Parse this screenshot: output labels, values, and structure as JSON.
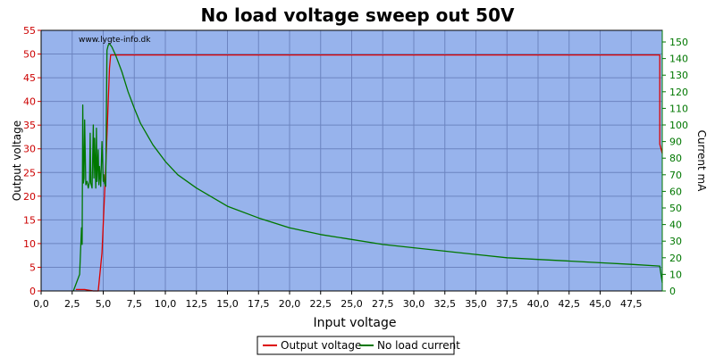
{
  "chart_data": {
    "type": "line",
    "title": "No load voltage sweep out 50V",
    "watermark": "www.lygte-info.dk",
    "xlabel": "Input voltage",
    "ylabel_left": "Output voltage",
    "ylabel_right": "Current mA",
    "xlim": [
      0,
      50
    ],
    "ylim_left": [
      0,
      55
    ],
    "ylim_right": [
      0,
      157
    ],
    "x_ticks": [
      "0,0",
      "2,5",
      "5,0",
      "7,5",
      "10,0",
      "12,5",
      "15,0",
      "17,5",
      "20,0",
      "22,5",
      "25,0",
      "27,5",
      "30,0",
      "32,5",
      "35,0",
      "37,5",
      "40,0",
      "42,5",
      "45,0",
      "47,5"
    ],
    "y_left_ticks": [
      "0",
      "5",
      "10",
      "15",
      "20",
      "25",
      "30",
      "35",
      "40",
      "45",
      "50",
      "55"
    ],
    "y_right_ticks": [
      "0",
      "10",
      "20",
      "30",
      "40",
      "50",
      "60",
      "70",
      "80",
      "90",
      "100",
      "110",
      "120",
      "130",
      "140",
      "150"
    ],
    "grid": true,
    "legend_position": "bottom-center",
    "colors": {
      "plot_bg": "#97b3ec",
      "grid": "#6c84c0",
      "output": "#dd0000",
      "current": "#007700",
      "left_axis": "#cc0000",
      "right_axis": "#007700"
    },
    "series": [
      {
        "name": "Output voltage",
        "axis": "left",
        "x": [
          2.8,
          3.5,
          4.2,
          4.6,
          4.9,
          5.2,
          5.5,
          5.6,
          49.8,
          49.8,
          50.0
        ],
        "y": [
          0.3,
          0.3,
          0.0,
          0.0,
          8.0,
          26.0,
          47.0,
          49.8,
          49.8,
          31.0,
          29.0
        ]
      },
      {
        "name": "No load current",
        "axis": "right",
        "x": [
          2.6,
          3.1,
          3.25,
          3.3,
          3.35,
          3.4,
          3.45,
          3.5,
          3.6,
          3.7,
          3.8,
          3.9,
          3.95,
          4.0,
          4.1,
          4.2,
          4.25,
          4.3,
          4.4,
          4.45,
          4.5,
          4.6,
          4.65,
          4.7,
          4.8,
          4.9,
          5.0,
          5.05,
          5.1,
          5.2,
          5.3,
          5.4,
          5.5,
          5.7,
          6.0,
          6.5,
          7.0,
          7.5,
          8.0,
          9.0,
          10.0,
          11.0,
          12.5,
          15.0,
          17.5,
          20.0,
          22.5,
          25.0,
          27.5,
          30.0,
          32.5,
          35.0,
          37.5,
          40.0,
          42.5,
          45.0,
          47.5,
          49.8,
          50.0
        ],
        "y": [
          0,
          10,
          38,
          28,
          112,
          65,
          68,
          103,
          64,
          66,
          62,
          66,
          95,
          65,
          62,
          100,
          68,
          92,
          62,
          98,
          66,
          85,
          64,
          75,
          63,
          90,
          66,
          70,
          65,
          63,
          145,
          148,
          149,
          147,
          142,
          132,
          120,
          110,
          101,
          88,
          78,
          70,
          62,
          51,
          44,
          38,
          34,
          31,
          28,
          26,
          24,
          22,
          20,
          19,
          18,
          17,
          16,
          15,
          5
        ]
      }
    ]
  }
}
